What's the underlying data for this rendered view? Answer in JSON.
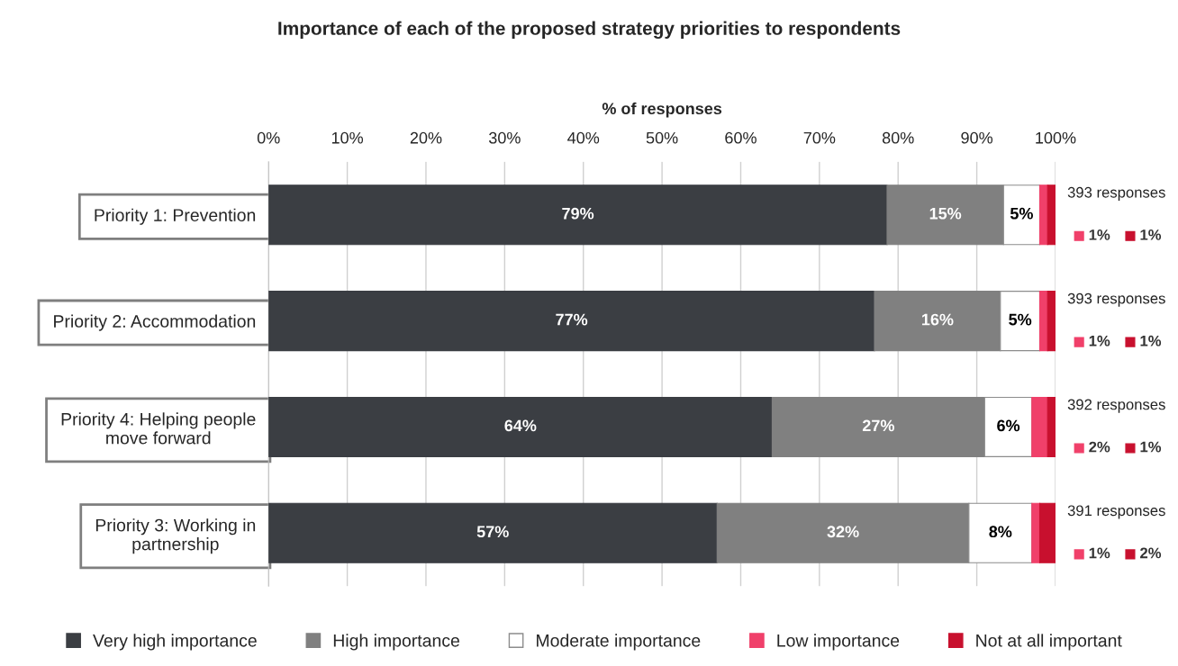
{
  "chart_data": {
    "type": "bar",
    "orientation": "horizontal",
    "stacked": true,
    "title": "Importance of each of the proposed strategy priorities to respondents",
    "xlabel": "% of responses",
    "categories": [
      "Priority 1: Prevention",
      "Priority 2: Accommodation",
      "Priority 4: Helping people\nmove forward",
      "Priority 3: Working in\npartnership"
    ],
    "series": [
      {
        "name": "Very high importance",
        "color": "#3b3e43",
        "values": [
          78.6,
          77,
          64,
          57
        ],
        "value_labels": [
          "79%",
          "77%",
          "64%",
          "57%"
        ]
      },
      {
        "name": "High importance",
        "color": "#808080",
        "values": [
          14.8,
          16,
          27,
          32
        ],
        "value_labels": [
          "15%",
          "16%",
          "27%",
          "32%"
        ]
      },
      {
        "name": "Moderate importance",
        "color": "#ffffff",
        "values": [
          4.6,
          5,
          6,
          8
        ],
        "value_labels": [
          "5%",
          "5%",
          "6%",
          "8%"
        ]
      },
      {
        "name": "Low importance",
        "color": "#f0406a",
        "values": [
          1,
          1,
          2,
          1
        ],
        "value_labels": [
          "1%",
          "1%",
          "2%",
          "1%"
        ]
      },
      {
        "name": "Not at all important",
        "color": "#c8102e",
        "values": [
          1,
          1,
          1,
          2
        ],
        "value_labels": [
          "1%",
          "1%",
          "1%",
          "2%"
        ]
      }
    ],
    "xlim": [
      0,
      100
    ],
    "xticks": [
      {
        "value": 0,
        "label": "0%"
      },
      {
        "value": 10,
        "label": "10%"
      },
      {
        "value": 20,
        "label": "20%"
      },
      {
        "value": 30,
        "label": "30%"
      },
      {
        "value": 40,
        "label": "40%"
      },
      {
        "value": 50,
        "label": "50%"
      },
      {
        "value": 60,
        "label": "60%"
      },
      {
        "value": 70,
        "label": "70%"
      },
      {
        "value": 80,
        "label": "80%"
      },
      {
        "value": 90,
        "label": "90%"
      },
      {
        "value": 100,
        "label": "100%"
      }
    ],
    "annotations": [
      "393 responses",
      "393 responses",
      "392 responses",
      "391 responses"
    ],
    "grid": "x",
    "legend": "bottom"
  }
}
